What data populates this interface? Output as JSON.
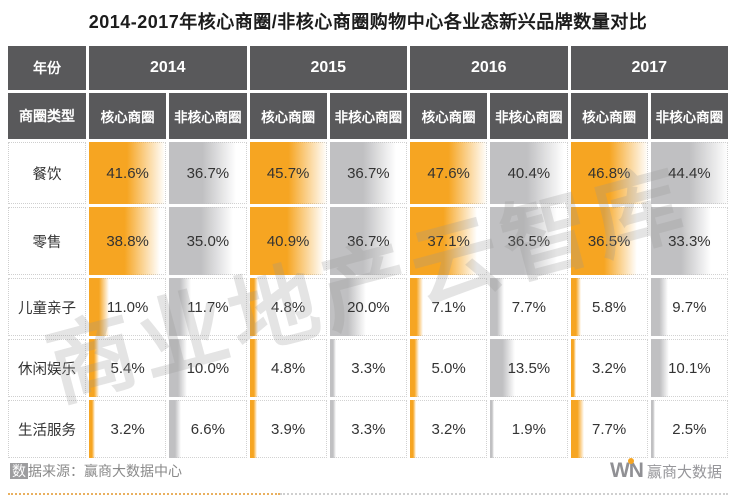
{
  "title": "2014-2017年核心商圈/非核心商圈购物中心各业态新兴品牌数量对比",
  "colors": {
    "header_bg": "#59595B",
    "core": "#F6A522",
    "noncore": "#C0C0C2",
    "title_text": "#1C1C1C",
    "cell_text": "#333333",
    "footer_text": "#8A8A8A",
    "logo_gray": "#909094",
    "watermark": "#969698"
  },
  "table": {
    "year_label": "年份",
    "years": [
      "2014",
      "2015",
      "2016",
      "2017"
    ],
    "type_label": "商圈类型",
    "subheaders": [
      "核心商圈",
      "非核心商圈"
    ],
    "rows": [
      {
        "label": "餐饮",
        "values": [
          "41.6%",
          "36.7%",
          "45.7%",
          "36.7%",
          "47.6%",
          "40.4%",
          "46.8%",
          "44.4%"
        ]
      },
      {
        "label": "零售",
        "values": [
          "38.8%",
          "35.0%",
          "40.9%",
          "36.7%",
          "37.1%",
          "36.5%",
          "36.5%",
          "33.3%"
        ]
      },
      {
        "label": "儿童亲子",
        "values": [
          "11.0%",
          "11.7%",
          "4.8%",
          "20.0%",
          "7.1%",
          "7.7%",
          "5.8%",
          "9.7%"
        ]
      },
      {
        "label": "休闲娱乐",
        "values": [
          "5.4%",
          "10.0%",
          "4.8%",
          "3.3%",
          "5.0%",
          "13.5%",
          "3.2%",
          "10.1%"
        ]
      },
      {
        "label": "生活服务",
        "values": [
          "3.2%",
          "6.6%",
          "3.9%",
          "3.3%",
          "3.2%",
          "1.9%",
          "7.7%",
          "2.5%"
        ]
      }
    ]
  },
  "chart_data": {
    "type": "table",
    "title": "2014-2017年核心商圈/非核心商圈购物中心各业态新兴品牌数量对比",
    "unit": "%",
    "column_groups": [
      "2014",
      "2015",
      "2016",
      "2017"
    ],
    "column_types_per_group": [
      "核心商圈",
      "非核心商圈"
    ],
    "row_categories": [
      "餐饮",
      "零售",
      "儿童亲子",
      "休闲娱乐",
      "生活服务"
    ],
    "values": [
      [
        41.6,
        36.7,
        45.7,
        36.7,
        47.6,
        40.4,
        46.8,
        44.4
      ],
      [
        38.8,
        35.0,
        40.9,
        36.7,
        37.1,
        36.5,
        36.5,
        33.3
      ],
      [
        11.0,
        11.7,
        4.8,
        20.0,
        7.1,
        7.7,
        5.8,
        9.7
      ],
      [
        5.4,
        10.0,
        4.8,
        3.3,
        5.0,
        13.5,
        3.2,
        10.1
      ],
      [
        3.2,
        6.6,
        3.9,
        3.3,
        3.2,
        1.9,
        7.7,
        2.5
      ]
    ],
    "bar_style": "horizontal gradient data bars inside cells, orange = 核心商圈, gray = 非核心商圈",
    "bar_scale_max": 47.6
  },
  "watermark": "商业地产云智库",
  "footer": {
    "source_first_char": "数",
    "source_rest": "据来源：赢商大数据中心"
  },
  "logo": {
    "win": "WN",
    "text": "赢商大数据"
  }
}
